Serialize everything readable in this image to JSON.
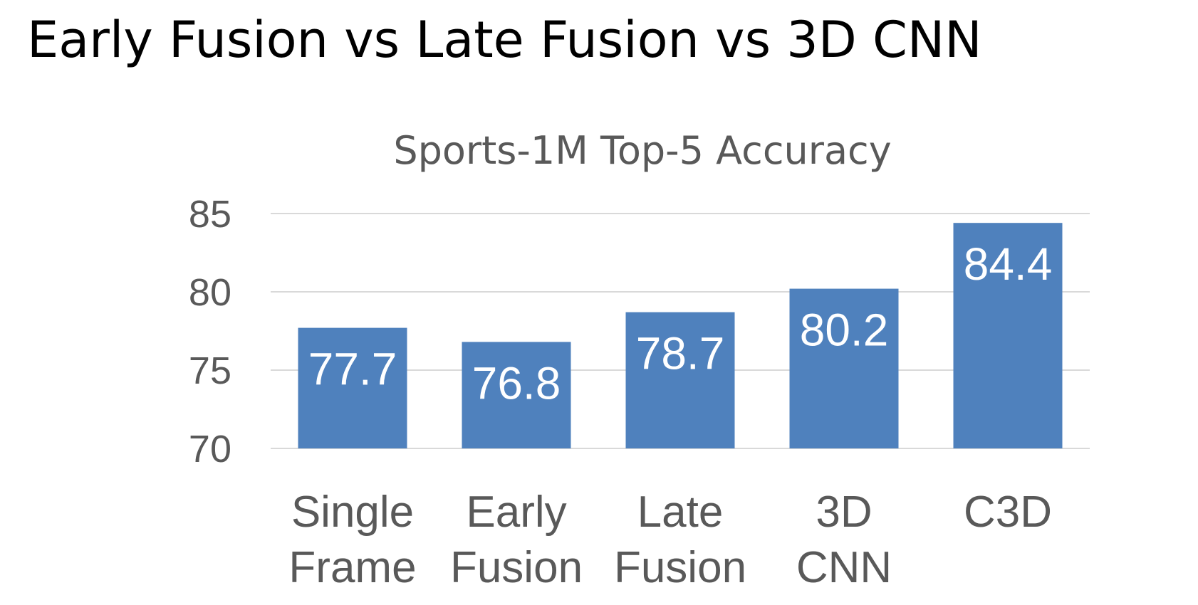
{
  "slide": {
    "title": "Early Fusion vs Late Fusion vs 3D CNN"
  },
  "chart_data": {
    "type": "bar",
    "title": "Sports-1M Top-5 Accuracy",
    "xlabel": "",
    "ylabel": "",
    "categories": [
      [
        "Single",
        "Frame"
      ],
      [
        "Early",
        "Fusion"
      ],
      [
        "Late",
        "Fusion"
      ],
      [
        "3D",
        "CNN"
      ],
      [
        "C3D"
      ]
    ],
    "values": [
      77.7,
      76.8,
      78.7,
      80.2,
      84.4
    ],
    "data_labels": [
      "77.7",
      "76.8",
      "78.7",
      "80.2",
      "84.4"
    ],
    "ylim": [
      70,
      85
    ],
    "yticks": [
      70,
      75,
      80,
      85
    ],
    "grid": true,
    "legend": "none",
    "bar_color": "#4f81bd",
    "gridline_color": "#d9d9d9",
    "label_color": "#595959",
    "data_label_color": "#ffffff"
  }
}
